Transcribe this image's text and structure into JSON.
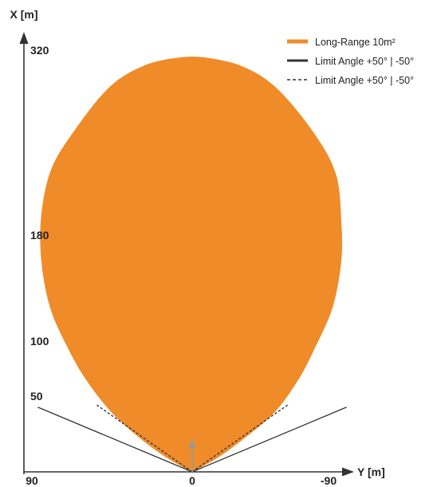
{
  "chart_data": {
    "type": "area",
    "xlabel": "Y [m]",
    "ylabel": "X [m]",
    "y_ticks": [
      {
        "label": "320",
        "value": 320
      },
      {
        "label": "180",
        "value": 180
      },
      {
        "label": "100",
        "value": 100
      },
      {
        "label": "50",
        "value": 50
      }
    ],
    "x_ticks": [
      {
        "label": "90",
        "value": 90
      },
      {
        "label": "0",
        "value": 0
      },
      {
        "label": "-90",
        "value": -90
      }
    ],
    "legend_position": "top-right",
    "grid": false,
    "series": [
      {
        "name": "Long-Range 10m²",
        "kind": "filled-area",
        "color": "#EF8B28",
        "outline": [
          {
            "y": 0,
            "x": 0
          },
          {
            "y": -14,
            "x": 10
          },
          {
            "y": -30,
            "x": 25
          },
          {
            "y": -48,
            "x": 45
          },
          {
            "y": -62,
            "x": 70
          },
          {
            "y": -72,
            "x": 95
          },
          {
            "y": -82,
            "x": 125
          },
          {
            "y": -87,
            "x": 160
          },
          {
            "y": -87,
            "x": 190
          },
          {
            "y": -84,
            "x": 225
          },
          {
            "y": -72,
            "x": 255
          },
          {
            "y": -50,
            "x": 290
          },
          {
            "y": -30,
            "x": 307
          },
          {
            "y": -8,
            "x": 314
          },
          {
            "y": 8,
            "x": 314
          },
          {
            "y": 28,
            "x": 308
          },
          {
            "y": 48,
            "x": 292
          },
          {
            "y": 68,
            "x": 260
          },
          {
            "y": 82,
            "x": 230
          },
          {
            "y": 88,
            "x": 195
          },
          {
            "y": 88,
            "x": 160
          },
          {
            "y": 83,
            "x": 125
          },
          {
            "y": 73,
            "x": 95
          },
          {
            "y": 62,
            "x": 70
          },
          {
            "y": 47,
            "x": 45
          },
          {
            "y": 30,
            "x": 25
          },
          {
            "y": 14,
            "x": 10
          },
          {
            "y": 0,
            "x": 0
          }
        ]
      },
      {
        "name": "Limit Angle +50° | -50°",
        "kind": "solid-line",
        "color": "#333333",
        "segments": [
          [
            {
              "y": 0,
              "x": 0
            },
            {
              "y": 90,
              "x": 49
            }
          ],
          [
            {
              "y": 0,
              "x": 0
            },
            {
              "y": -90,
              "x": 49
            }
          ]
        ]
      },
      {
        "name": "Limit Angle +50° | -50°",
        "kind": "dashed-line",
        "color": "#333333",
        "segments": [
          [
            {
              "y": 0,
              "x": 0
            },
            {
              "y": 56,
              "x": 51
            }
          ],
          [
            {
              "y": 0,
              "x": 0
            },
            {
              "y": -56,
              "x": 51
            }
          ]
        ]
      }
    ],
    "annotations": [
      {
        "kind": "direction-arrow",
        "color": "#999999",
        "from": {
          "y": 0,
          "x": 0
        },
        "to": {
          "y": 0,
          "x": 25
        }
      }
    ]
  }
}
